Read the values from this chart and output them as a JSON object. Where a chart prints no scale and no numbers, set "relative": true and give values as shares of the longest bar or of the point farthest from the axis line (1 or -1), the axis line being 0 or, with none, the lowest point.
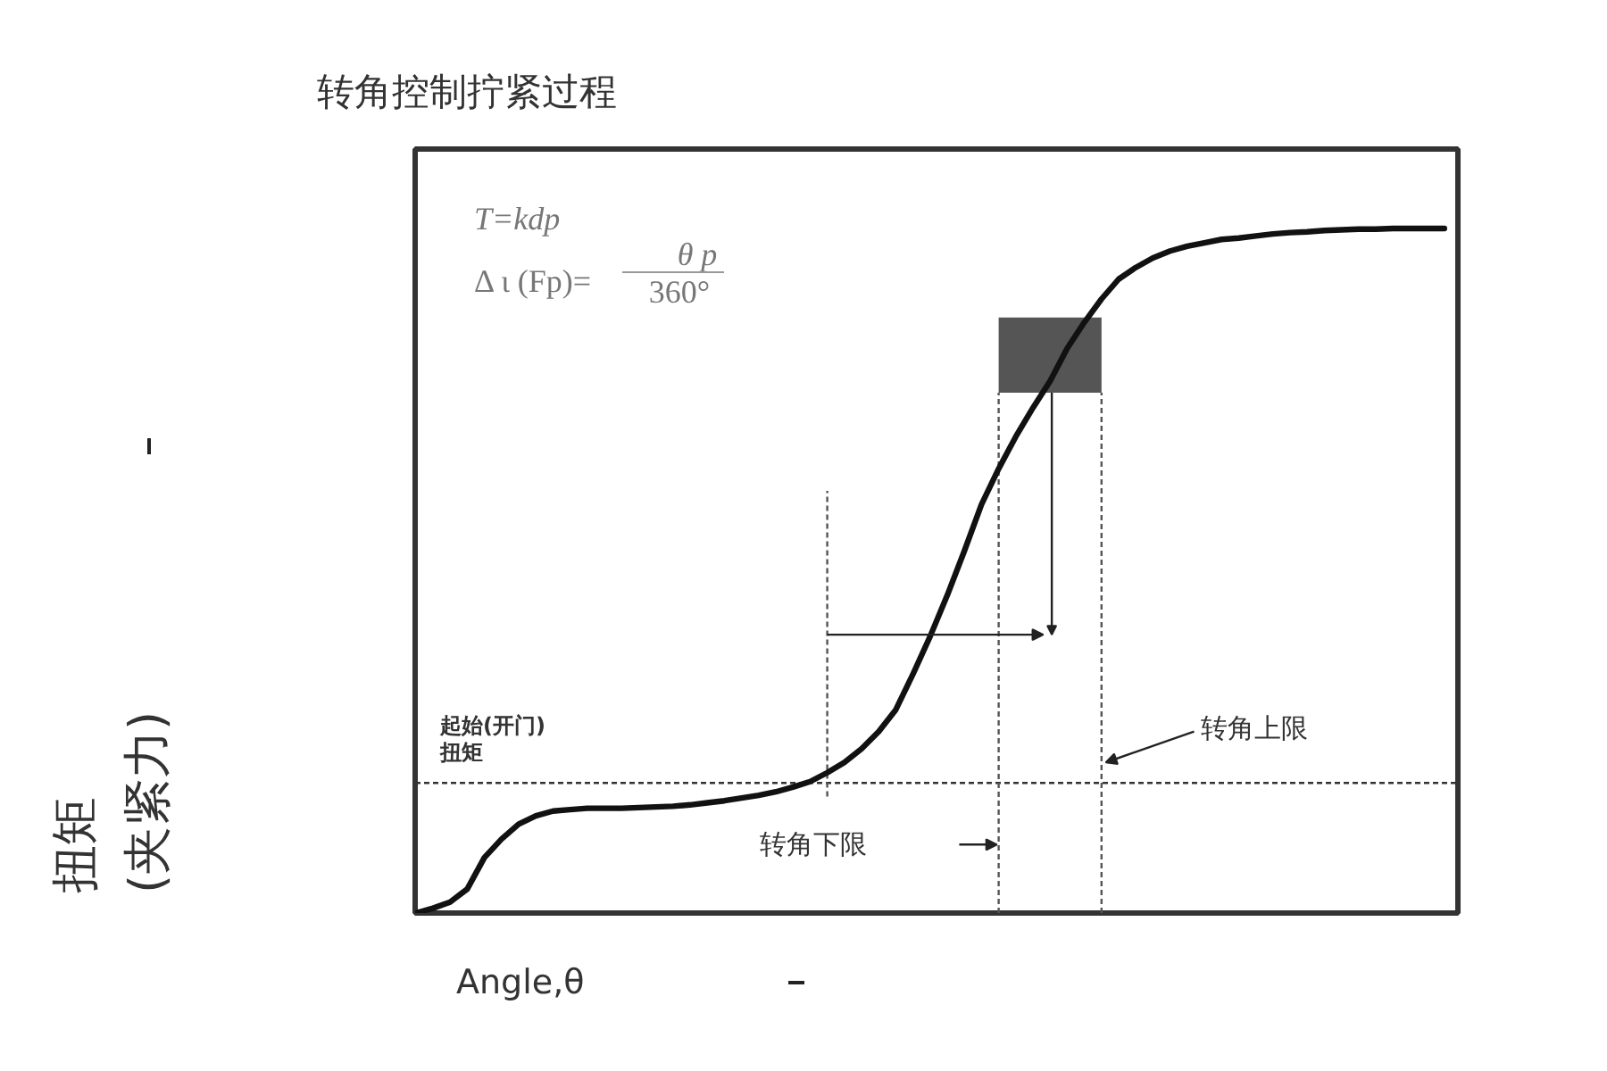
{
  "chart_data": {
    "type": "line",
    "title": "转角控制拧紧过程",
    "xlabel": "Angle,θ",
    "ylabel": "扭矩\n(夹紧力)",
    "relative": true,
    "categories": [
      null,
      null,
      null,
      null,
      null,
      null,
      null,
      null,
      null,
      null,
      null,
      null,
      null,
      null,
      null,
      null,
      null,
      null,
      null,
      null,
      null,
      null,
      null,
      null,
      null,
      null,
      null,
      null,
      null,
      null,
      null,
      null,
      null,
      null,
      null,
      null,
      null,
      null,
      null,
      null,
      null,
      null,
      null,
      null,
      null,
      null,
      null,
      null,
      null,
      null,
      null,
      null,
      null,
      null,
      null,
      null,
      null,
      null,
      null,
      null,
      null
    ],
    "series": [
      {
        "color": "#111111",
        "values": [
          0,
          0.007,
          0.016,
          0.035,
          0.081,
          0.108,
          0.13,
          0.142,
          0.149,
          0.151,
          0.153,
          0.153,
          0.153,
          0.154,
          0.155,
          0.156,
          0.158,
          0.161,
          0.164,
          0.168,
          0.172,
          0.177,
          0.184,
          0.192,
          0.205,
          0.22,
          0.24,
          0.265,
          0.297,
          0.349,
          0.404,
          0.464,
          0.529,
          0.597,
          0.649,
          0.696,
          0.738,
          0.777,
          0.825,
          0.863,
          0.897,
          0.926,
          0.943,
          0.957,
          0.967,
          0.974,
          0.979,
          0.984,
          0.986,
          0.989,
          0.992,
          0.994,
          0.995,
          0.997,
          0.998,
          0.999,
          0.999,
          1,
          1,
          1,
          1
        ]
      }
    ],
    "ref_lines": [
      {
        "axis": "y",
        "value": 0.19,
        "label": "起始(开门)\n扭矩",
        "line_style": "dashed",
        "color": "#333333"
      }
    ],
    "bands": [
      {
        "axis": "y",
        "from": 0.76,
        "to": 0.87,
        "color": "#555555"
      }
    ],
    "annotations": [
      "T=kdp",
      "Δ ι (Fp)=",
      "θ p",
      "360°",
      "转角下限",
      "转角上限"
    ],
    "grid": false,
    "marker": "none",
    "line_style": "solid"
  }
}
